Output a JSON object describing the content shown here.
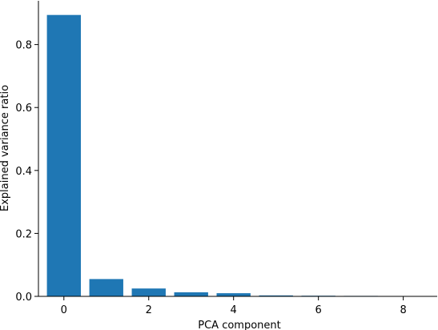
{
  "chart_data": {
    "type": "bar",
    "title": "",
    "xlabel": "PCA component",
    "ylabel": "Explained variance ratio",
    "x": [
      0,
      1,
      2,
      3,
      4,
      5,
      6,
      7,
      8
    ],
    "values": [
      0.894,
      0.055,
      0.025,
      0.013,
      0.01,
      0.003,
      0.002,
      0.0015,
      0.001
    ],
    "xlim": [
      -0.6,
      8.8
    ],
    "ylim": [
      0,
      0.939
    ],
    "x_ticks": [
      0,
      2,
      4,
      6,
      8
    ],
    "y_ticks": [
      0.0,
      0.2,
      0.4,
      0.6,
      0.8
    ],
    "y_tick_labels": [
      "0.0",
      "0.2",
      "0.4",
      "0.6",
      "0.8"
    ],
    "bar_color": "#1f77b4",
    "grid": false,
    "legend": "none"
  }
}
